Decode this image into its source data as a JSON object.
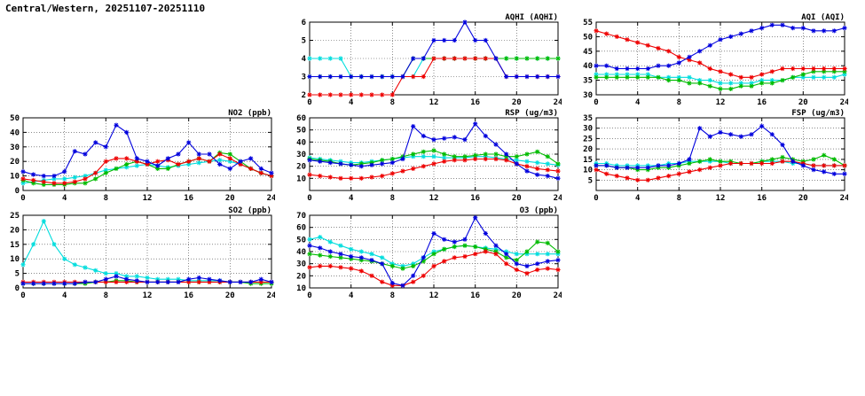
{
  "page_title": "Central/Western, 20251107-20251110",
  "colors": {
    "blue": "#0000dd",
    "red": "#ee0000",
    "green": "#00bb00",
    "cyan": "#00dddd"
  },
  "chart_data": [
    {
      "id": "aqhi",
      "type": "line",
      "title": "AQHI (AQHI)",
      "xlabel": "",
      "ylabel": "",
      "grid": true,
      "legend": "none",
      "xlim": [
        0,
        24
      ],
      "ylim": [
        2,
        6
      ],
      "xticks": [
        0,
        4,
        8,
        12,
        16,
        20,
        24
      ],
      "yticks": [
        2,
        3,
        4,
        5,
        6
      ],
      "x_start": 0,
      "x_step": 1,
      "series": [
        {
          "name": "cyan",
          "color": "#00dddd",
          "values": [
            4,
            4,
            4,
            4,
            3,
            3,
            3,
            3,
            3,
            3,
            3,
            4,
            4,
            4,
            4,
            4,
            4,
            4,
            4,
            4,
            4,
            4,
            4,
            4,
            4
          ]
        },
        {
          "name": "green",
          "color": "#00bb00",
          "values": [
            3,
            3,
            3,
            3,
            3,
            3,
            3,
            3,
            3,
            3,
            4,
            4,
            4,
            4,
            4,
            4,
            4,
            4,
            4,
            4,
            4,
            4,
            4,
            4,
            4
          ]
        },
        {
          "name": "red",
          "color": "#ee0000",
          "values": [
            2,
            2,
            2,
            2,
            2,
            2,
            2,
            2,
            2,
            3,
            3,
            3,
            4,
            4,
            4,
            4,
            4,
            4,
            4,
            3,
            3,
            3,
            3,
            3,
            3
          ]
        },
        {
          "name": "blue",
          "color": "#0000dd",
          "values": [
            3,
            3,
            3,
            3,
            3,
            3,
            3,
            3,
            3,
            3,
            4,
            4,
            5,
            5,
            5,
            6,
            5,
            5,
            4,
            3,
            3,
            3,
            3,
            3,
            3
          ]
        }
      ]
    },
    {
      "id": "aqi",
      "type": "line",
      "title": "AQI (AQI)",
      "xlabel": "",
      "ylabel": "",
      "grid": true,
      "legend": "none",
      "xlim": [
        0,
        24
      ],
      "ylim": [
        30,
        55
      ],
      "xticks": [
        0,
        4,
        8,
        12,
        16,
        20,
        24
      ],
      "yticks": [
        30,
        35,
        40,
        45,
        50,
        55
      ],
      "x_start": 0,
      "x_step": 1,
      "series": [
        {
          "name": "cyan",
          "color": "#00dddd",
          "values": [
            37,
            37,
            37,
            37,
            37,
            37,
            36,
            36,
            36,
            36,
            35,
            35,
            34,
            34,
            34,
            34,
            35,
            35,
            35,
            36,
            36,
            36,
            36,
            36,
            37
          ]
        },
        {
          "name": "green",
          "color": "#00bb00",
          "values": [
            36,
            36,
            36,
            36,
            36,
            36,
            36,
            35,
            35,
            34,
            34,
            33,
            32,
            32,
            33,
            33,
            34,
            34,
            35,
            36,
            37,
            38,
            38,
            38,
            38
          ]
        },
        {
          "name": "red",
          "color": "#ee0000",
          "values": [
            52,
            51,
            50,
            49,
            48,
            47,
            46,
            45,
            43,
            42,
            41,
            39,
            38,
            37,
            36,
            36,
            37,
            38,
            39,
            39,
            39,
            39,
            39,
            39,
            39
          ]
        },
        {
          "name": "blue",
          "color": "#0000dd",
          "values": [
            40,
            40,
            39,
            39,
            39,
            39,
            40,
            40,
            41,
            43,
            45,
            47,
            49,
            50,
            51,
            52,
            53,
            54,
            54,
            53,
            53,
            52,
            52,
            52,
            53
          ]
        }
      ]
    },
    {
      "id": "no2",
      "type": "line",
      "title": "NO2 (ppb)",
      "xlabel": "",
      "ylabel": "",
      "grid": true,
      "legend": "none",
      "xlim": [
        0,
        24
      ],
      "ylim": [
        0,
        50
      ],
      "xticks": [
        0,
        4,
        8,
        12,
        16,
        20,
        24
      ],
      "yticks": [
        0,
        10,
        20,
        30,
        40,
        50
      ],
      "x_start": 0,
      "x_step": 1,
      "series": [
        {
          "name": "cyan",
          "color": "#00dddd",
          "values": [
            5,
            6,
            7,
            8,
            8,
            9,
            10,
            12,
            14,
            15,
            16,
            17,
            18,
            17,
            16,
            17,
            18,
            19,
            20,
            21,
            20,
            18,
            15,
            12,
            10
          ]
        },
        {
          "name": "green",
          "color": "#00bb00",
          "values": [
            7,
            5,
            4,
            4,
            4,
            5,
            5,
            8,
            12,
            15,
            18,
            20,
            18,
            15,
            15,
            18,
            20,
            22,
            20,
            26,
            25,
            20,
            15,
            12,
            10
          ]
        },
        {
          "name": "red",
          "color": "#ee0000",
          "values": [
            8,
            7,
            6,
            5,
            5,
            6,
            8,
            12,
            20,
            22,
            22,
            20,
            18,
            20,
            21,
            18,
            20,
            22,
            20,
            25,
            22,
            18,
            15,
            12,
            10
          ]
        },
        {
          "name": "blue",
          "color": "#0000dd",
          "values": [
            13,
            11,
            10,
            10,
            13,
            27,
            25,
            33,
            30,
            45,
            40,
            22,
            20,
            17,
            22,
            25,
            33,
            25,
            25,
            18,
            15,
            20,
            22,
            15,
            12
          ]
        }
      ]
    },
    {
      "id": "rsp",
      "type": "line",
      "title": "RSP (ug/m3)",
      "xlabel": "",
      "ylabel": "",
      "grid": true,
      "legend": "none",
      "xlim": [
        0,
        24
      ],
      "ylim": [
        0,
        60
      ],
      "xticks": [
        0,
        4,
        8,
        12,
        16,
        20,
        24
      ],
      "yticks": [
        10,
        20,
        30,
        40,
        50,
        60
      ],
      "x_start": 0,
      "x_step": 1,
      "series": [
        {
          "name": "cyan",
          "color": "#00dddd",
          "values": [
            27,
            26,
            25,
            24,
            23,
            23,
            24,
            25,
            26,
            27,
            28,
            28,
            28,
            27,
            27,
            27,
            28,
            28,
            27,
            26,
            25,
            24,
            23,
            22,
            21
          ]
        },
        {
          "name": "green",
          "color": "#00bb00",
          "values": [
            26,
            25,
            24,
            22,
            21,
            22,
            23,
            25,
            26,
            28,
            30,
            32,
            33,
            30,
            28,
            28,
            29,
            30,
            30,
            28,
            28,
            30,
            32,
            28,
            22
          ]
        },
        {
          "name": "red",
          "color": "#ee0000",
          "values": [
            13,
            12,
            11,
            10,
            10,
            10,
            11,
            12,
            14,
            16,
            18,
            20,
            22,
            24,
            25,
            25,
            26,
            26,
            26,
            25,
            22,
            20,
            18,
            17,
            16
          ]
        },
        {
          "name": "blue",
          "color": "#0000dd",
          "values": [
            25,
            24,
            23,
            22,
            21,
            20,
            21,
            22,
            23,
            26,
            53,
            45,
            42,
            43,
            44,
            42,
            55,
            45,
            38,
            30,
            22,
            16,
            13,
            12,
            10
          ]
        }
      ]
    },
    {
      "id": "fsp",
      "type": "line",
      "title": "FSP (ug/m3)",
      "xlabel": "",
      "ylabel": "",
      "grid": true,
      "legend": "none",
      "xlim": [
        0,
        24
      ],
      "ylim": [
        0,
        35
      ],
      "xticks": [
        0,
        4,
        8,
        12,
        16,
        20,
        24
      ],
      "yticks": [
        5,
        10,
        15,
        20,
        25,
        30,
        35
      ],
      "x_start": 0,
      "x_step": 1,
      "series": [
        {
          "name": "cyan",
          "color": "#00dddd",
          "values": [
            13,
            13,
            12,
            12,
            12,
            12,
            12,
            13,
            13,
            14,
            14,
            14,
            14,
            13,
            13,
            13,
            14,
            14,
            14,
            13,
            13,
            12,
            12,
            12,
            12
          ]
        },
        {
          "name": "green",
          "color": "#00bb00",
          "values": [
            12,
            12,
            11,
            11,
            10,
            10,
            11,
            11,
            12,
            13,
            14,
            15,
            14,
            14,
            13,
            13,
            14,
            15,
            16,
            15,
            14,
            15,
            17,
            15,
            12
          ]
        },
        {
          "name": "red",
          "color": "#ee0000",
          "values": [
            10,
            8,
            7,
            6,
            5,
            5,
            6,
            7,
            8,
            9,
            10,
            11,
            12,
            13,
            13,
            13,
            13,
            13,
            14,
            14,
            13,
            12,
            12,
            12,
            12
          ]
        },
        {
          "name": "blue",
          "color": "#0000dd",
          "values": [
            12,
            12,
            11,
            11,
            11,
            11,
            12,
            12,
            13,
            15,
            30,
            26,
            28,
            27,
            26,
            27,
            31,
            27,
            22,
            14,
            12,
            10,
            9,
            8,
            8
          ]
        }
      ]
    },
    {
      "id": "so2",
      "type": "line",
      "title": "SO2 (ppb)",
      "xlabel": "",
      "ylabel": "",
      "grid": true,
      "legend": "none",
      "xlim": [
        0,
        24
      ],
      "ylim": [
        0,
        25
      ],
      "xticks": [
        0,
        4,
        8,
        12,
        16,
        20,
        24
      ],
      "yticks": [
        0,
        5,
        10,
        15,
        20,
        25
      ],
      "x_start": 0,
      "x_step": 1,
      "series": [
        {
          "name": "cyan",
          "color": "#00dddd",
          "values": [
            8,
            15,
            23,
            15,
            10,
            8,
            7,
            6,
            5,
            5,
            4,
            4,
            3.5,
            3,
            3,
            3,
            2.5,
            2.5,
            2.5,
            2.5,
            2,
            2,
            2,
            2,
            2
          ]
        },
        {
          "name": "green",
          "color": "#00bb00",
          "values": [
            1.5,
            1.5,
            1.5,
            1.5,
            1.5,
            1.5,
            1.5,
            2,
            2,
            2.5,
            2.5,
            2,
            2,
            2,
            2,
            2,
            2,
            2,
            2,
            2,
            2,
            2,
            1.5,
            1.5,
            1.5
          ]
        },
        {
          "name": "red",
          "color": "#ee0000",
          "values": [
            2,
            2,
            2,
            2,
            2,
            2,
            2,
            2,
            2,
            2,
            2,
            2,
            2,
            2,
            2,
            2,
            2,
            2,
            2,
            2,
            2,
            2,
            2,
            2,
            2
          ]
        },
        {
          "name": "blue",
          "color": "#0000dd",
          "values": [
            1.5,
            1.5,
            1.5,
            1.5,
            1.5,
            1.5,
            2,
            2,
            3,
            4,
            3,
            2.5,
            2,
            2,
            2,
            2,
            3,
            3.5,
            3,
            2.5,
            2,
            2,
            2,
            3,
            2
          ]
        }
      ]
    },
    {
      "id": "o3",
      "type": "line",
      "title": "O3 (ppb)",
      "xlabel": "",
      "ylabel": "",
      "grid": true,
      "legend": "none",
      "xlim": [
        0,
        24
      ],
      "ylim": [
        10,
        70
      ],
      "xticks": [
        0,
        4,
        8,
        12,
        16,
        20,
        24
      ],
      "yticks": [
        10,
        20,
        30,
        40,
        50,
        60,
        70
      ],
      "x_start": 0,
      "x_step": 1,
      "series": [
        {
          "name": "cyan",
          "color": "#00dddd",
          "values": [
            50,
            52,
            48,
            45,
            42,
            40,
            38,
            35,
            30,
            28,
            30,
            35,
            40,
            42,
            44,
            45,
            44,
            43,
            42,
            40,
            38,
            38,
            38,
            38,
            38
          ]
        },
        {
          "name": "green",
          "color": "#00bb00",
          "values": [
            38,
            37,
            36,
            35,
            34,
            33,
            32,
            30,
            28,
            26,
            28,
            32,
            38,
            42,
            44,
            45,
            44,
            42,
            40,
            35,
            33,
            40,
            48,
            47,
            40
          ]
        },
        {
          "name": "red",
          "color": "#ee0000",
          "values": [
            27,
            28,
            28,
            27,
            26,
            24,
            20,
            15,
            12,
            12,
            15,
            20,
            28,
            32,
            35,
            36,
            38,
            40,
            38,
            30,
            25,
            22,
            25,
            26,
            25
          ]
        },
        {
          "name": "blue",
          "color": "#0000dd",
          "values": [
            45,
            43,
            40,
            38,
            36,
            35,
            33,
            30,
            14,
            12,
            20,
            35,
            55,
            50,
            48,
            50,
            68,
            55,
            45,
            38,
            30,
            28,
            30,
            32,
            33
          ]
        }
      ]
    }
  ]
}
